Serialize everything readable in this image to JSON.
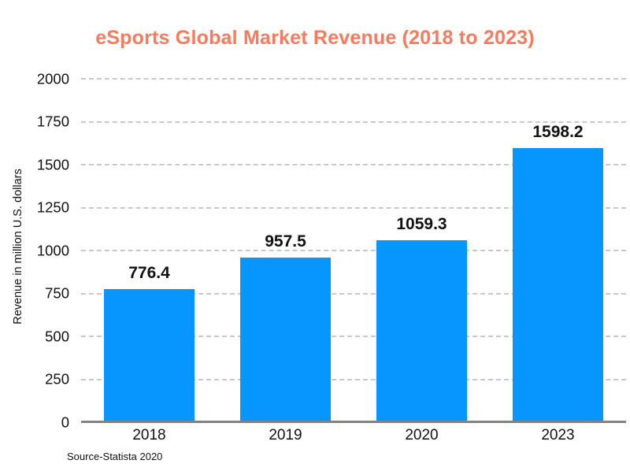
{
  "title": "eSports Global Market Revenue (2018 to 2023)",
  "source": "Source-Statista 2020",
  "colors": {
    "title": "#f87b5d",
    "bar": "#0795fe",
    "gridline": "#c9c9c9",
    "axis_line": "#828282",
    "text": "#111111",
    "background": "#ffffff"
  },
  "chart_data": {
    "type": "bar",
    "title": "eSports Global Market Revenue (2018 to 2023)",
    "categories": [
      "2018",
      "2019",
      "2020",
      "2023"
    ],
    "values": [
      776.4,
      957.5,
      1059.3,
      1598.2
    ],
    "xlabel": "",
    "ylabel": "Revenue in million U.S. dollars",
    "ylim": [
      0,
      2000
    ],
    "yticks": [
      0,
      250,
      500,
      750,
      1000,
      1250,
      1500,
      1750,
      2000
    ],
    "grid": "horizontal-dashed",
    "data_labels": true,
    "legend": "none",
    "source_note": "Source-Statista 2020"
  }
}
